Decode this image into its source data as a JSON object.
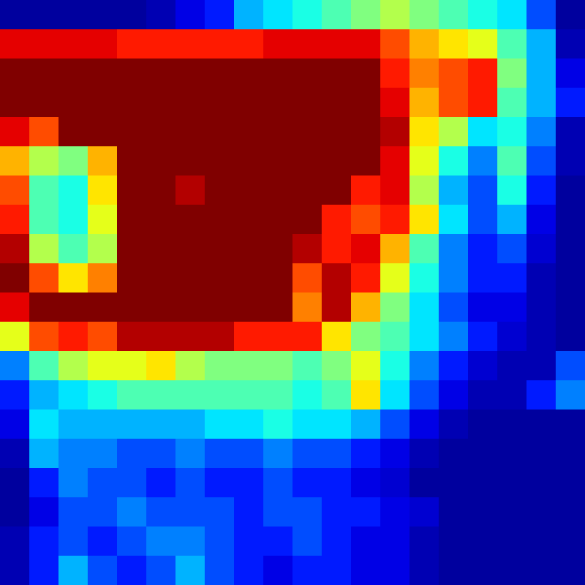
{
  "chart_data": {
    "type": "heatmap",
    "tick_labels": false,
    "clim": [
      0,
      1
    ],
    "cells": [
      [
        0.03,
        0.03,
        0.03,
        0.03,
        0.03,
        0.05,
        0.1,
        0.15,
        0.3,
        0.35,
        0.4,
        0.45,
        0.5,
        0.55,
        0.5,
        0.45,
        0.4,
        0.35,
        0.2,
        0.03
      ],
      [
        0.9,
        0.9,
        0.9,
        0.9,
        0.85,
        0.85,
        0.85,
        0.85,
        0.85,
        0.9,
        0.9,
        0.9,
        0.9,
        0.8,
        0.7,
        0.65,
        0.6,
        0.45,
        0.3,
        0.05
      ],
      [
        1.0,
        1.0,
        1.0,
        1.0,
        1.0,
        1.0,
        1.0,
        1.0,
        1.0,
        1.0,
        1.0,
        1.0,
        1.0,
        0.85,
        0.75,
        0.8,
        0.85,
        0.5,
        0.3,
        0.1
      ],
      [
        1.0,
        1.0,
        1.0,
        1.0,
        1.0,
        1.0,
        1.0,
        1.0,
        1.0,
        1.0,
        1.0,
        1.0,
        1.0,
        0.9,
        0.7,
        0.8,
        0.85,
        0.45,
        0.3,
        0.15
      ],
      [
        0.9,
        0.8,
        1.0,
        1.0,
        1.0,
        1.0,
        1.0,
        1.0,
        1.0,
        1.0,
        1.0,
        1.0,
        1.0,
        0.95,
        0.65,
        0.55,
        0.35,
        0.4,
        0.25,
        0.05
      ],
      [
        0.7,
        0.55,
        0.5,
        0.7,
        1.0,
        1.0,
        1.0,
        1.0,
        1.0,
        1.0,
        1.0,
        1.0,
        1.0,
        0.9,
        0.6,
        0.4,
        0.25,
        0.45,
        0.2,
        0.05
      ],
      [
        0.8,
        0.45,
        0.4,
        0.65,
        1.0,
        1.0,
        0.95,
        1.0,
        1.0,
        1.0,
        1.0,
        1.0,
        0.85,
        0.9,
        0.55,
        0.3,
        0.2,
        0.4,
        0.15,
        0.03
      ],
      [
        0.85,
        0.45,
        0.4,
        0.6,
        1.0,
        1.0,
        1.0,
        1.0,
        1.0,
        1.0,
        1.0,
        0.85,
        0.8,
        0.85,
        0.65,
        0.35,
        0.2,
        0.3,
        0.1,
        0.03
      ],
      [
        0.95,
        0.55,
        0.45,
        0.55,
        1.0,
        1.0,
        1.0,
        1.0,
        1.0,
        1.0,
        0.95,
        0.85,
        0.9,
        0.7,
        0.45,
        0.25,
        0.15,
        0.2,
        0.08,
        0.03
      ],
      [
        1.0,
        0.8,
        0.65,
        0.75,
        1.0,
        1.0,
        1.0,
        1.0,
        1.0,
        1.0,
        0.8,
        0.95,
        0.85,
        0.6,
        0.4,
        0.25,
        0.15,
        0.15,
        0.05,
        0.03
      ],
      [
        0.9,
        1.0,
        1.0,
        1.0,
        1.0,
        1.0,
        1.0,
        1.0,
        1.0,
        1.0,
        0.75,
        0.95,
        0.7,
        0.5,
        0.35,
        0.2,
        0.1,
        0.1,
        0.05,
        0.03
      ],
      [
        0.6,
        0.8,
        0.85,
        0.8,
        0.95,
        0.95,
        0.95,
        0.95,
        0.85,
        0.85,
        0.85,
        0.65,
        0.5,
        0.45,
        0.35,
        0.25,
        0.15,
        0.08,
        0.05,
        0.03
      ],
      [
        0.25,
        0.45,
        0.55,
        0.6,
        0.6,
        0.65,
        0.55,
        0.5,
        0.5,
        0.5,
        0.45,
        0.5,
        0.6,
        0.4,
        0.25,
        0.15,
        0.08,
        0.05,
        0.05,
        0.2
      ],
      [
        0.15,
        0.3,
        0.35,
        0.4,
        0.45,
        0.45,
        0.45,
        0.45,
        0.45,
        0.45,
        0.4,
        0.45,
        0.65,
        0.35,
        0.2,
        0.1,
        0.05,
        0.05,
        0.15,
        0.25
      ],
      [
        0.1,
        0.35,
        0.3,
        0.3,
        0.3,
        0.3,
        0.3,
        0.35,
        0.35,
        0.4,
        0.35,
        0.35,
        0.3,
        0.2,
        0.1,
        0.05,
        0.03,
        0.03,
        0.03,
        0.03
      ],
      [
        0.05,
        0.3,
        0.25,
        0.25,
        0.2,
        0.2,
        0.25,
        0.2,
        0.2,
        0.25,
        0.2,
        0.2,
        0.15,
        0.1,
        0.05,
        0.03,
        0.03,
        0.03,
        0.03,
        0.03
      ],
      [
        0.03,
        0.15,
        0.25,
        0.2,
        0.2,
        0.15,
        0.2,
        0.15,
        0.15,
        0.2,
        0.15,
        0.15,
        0.1,
        0.08,
        0.03,
        0.03,
        0.03,
        0.03,
        0.03,
        0.03
      ],
      [
        0.03,
        0.1,
        0.2,
        0.2,
        0.25,
        0.2,
        0.2,
        0.2,
        0.15,
        0.2,
        0.2,
        0.15,
        0.15,
        0.1,
        0.08,
        0.03,
        0.03,
        0.03,
        0.03,
        0.03
      ],
      [
        0.05,
        0.15,
        0.2,
        0.15,
        0.2,
        0.25,
        0.25,
        0.2,
        0.15,
        0.15,
        0.2,
        0.15,
        0.1,
        0.1,
        0.05,
        0.03,
        0.03,
        0.03,
        0.03,
        0.03
      ],
      [
        0.05,
        0.15,
        0.3,
        0.2,
        0.15,
        0.2,
        0.3,
        0.2,
        0.15,
        0.1,
        0.15,
        0.15,
        0.1,
        0.1,
        0.05,
        0.03,
        0.03,
        0.03,
        0.03,
        0.03
      ]
    ]
  }
}
